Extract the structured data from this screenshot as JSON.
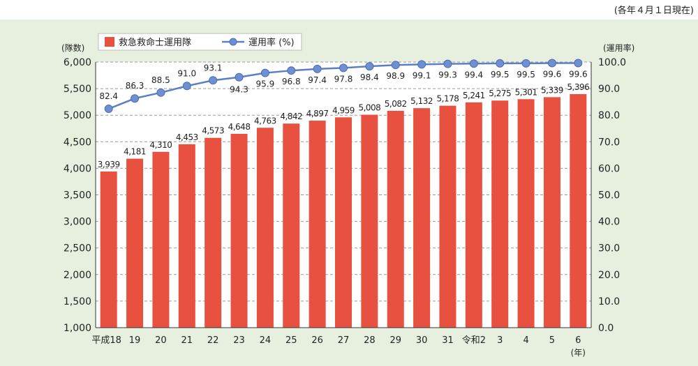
{
  "note": "(各年４月１日現在)",
  "colors": {
    "panel": "#e7f0df",
    "bar": "#e8503f",
    "line": "#5b7fc5",
    "marker": "#6f8fd0",
    "grid": "#9a9a9a"
  },
  "chart_data": {
    "type": "bar",
    "categories": [
      "平成18",
      "19",
      "20",
      "21",
      "22",
      "23",
      "24",
      "25",
      "26",
      "27",
      "28",
      "29",
      "30",
      "31",
      "令和2",
      "3",
      "4",
      "5",
      "6"
    ],
    "x_unit": "(年)",
    "series": [
      {
        "name": "救急救命士運用隊",
        "type": "bar",
        "axis": "left",
        "values": [
          3939,
          4181,
          4310,
          4453,
          4573,
          4648,
          4763,
          4842,
          4897,
          4959,
          5008,
          5082,
          5132,
          5178,
          5241,
          5275,
          5301,
          5339,
          5396
        ],
        "labels": [
          "3,939",
          "4,181",
          "4,310",
          "4,453",
          "4,573",
          "4,648",
          "4,763",
          "4,842",
          "4,897",
          "4,959",
          "5,008",
          "5,082",
          "5,132",
          "5,178",
          "5,241",
          "5,275",
          "5,301",
          "5,339",
          "5,396"
        ]
      },
      {
        "name": "運用率 (%)",
        "type": "line",
        "axis": "right",
        "values": [
          82.4,
          86.3,
          88.5,
          91.0,
          93.1,
          94.3,
          95.9,
          96.8,
          97.4,
          97.8,
          98.4,
          98.9,
          99.1,
          99.3,
          99.4,
          99.5,
          99.5,
          99.6,
          99.6
        ],
        "labels": [
          "82.4",
          "86.3",
          "88.5",
          "91.0",
          "93.1",
          "94.3",
          "95.9",
          "96.8",
          "97.4",
          "97.8",
          "98.4",
          "98.9",
          "99.1",
          "99.3",
          "99.4",
          "99.5",
          "99.5",
          "99.6",
          "99.6"
        ]
      }
    ],
    "y_left": {
      "label": "(隊数)",
      "min": 1000,
      "max": 6000,
      "ticks": [
        1000,
        1500,
        2000,
        2500,
        3000,
        3500,
        4000,
        4500,
        5000,
        5500,
        6000
      ],
      "tick_labels": [
        "1,000",
        "1,500",
        "2,000",
        "2,500",
        "3,000",
        "3,500",
        "4,000",
        "4,500",
        "5,000",
        "5,500",
        "6,000"
      ]
    },
    "y_right": {
      "label": "(運用率)",
      "min": 0,
      "max": 100,
      "ticks": [
        0,
        10,
        20,
        30,
        40,
        50,
        60,
        70,
        80,
        90,
        100
      ],
      "tick_labels": [
        "0.0",
        "10.0",
        "20.0",
        "30.0",
        "40.0",
        "50.0",
        "60.0",
        "70.0",
        "80.0",
        "90.0",
        "100.0"
      ]
    },
    "grid": "horizontal dashed",
    "legend": "top-left"
  }
}
